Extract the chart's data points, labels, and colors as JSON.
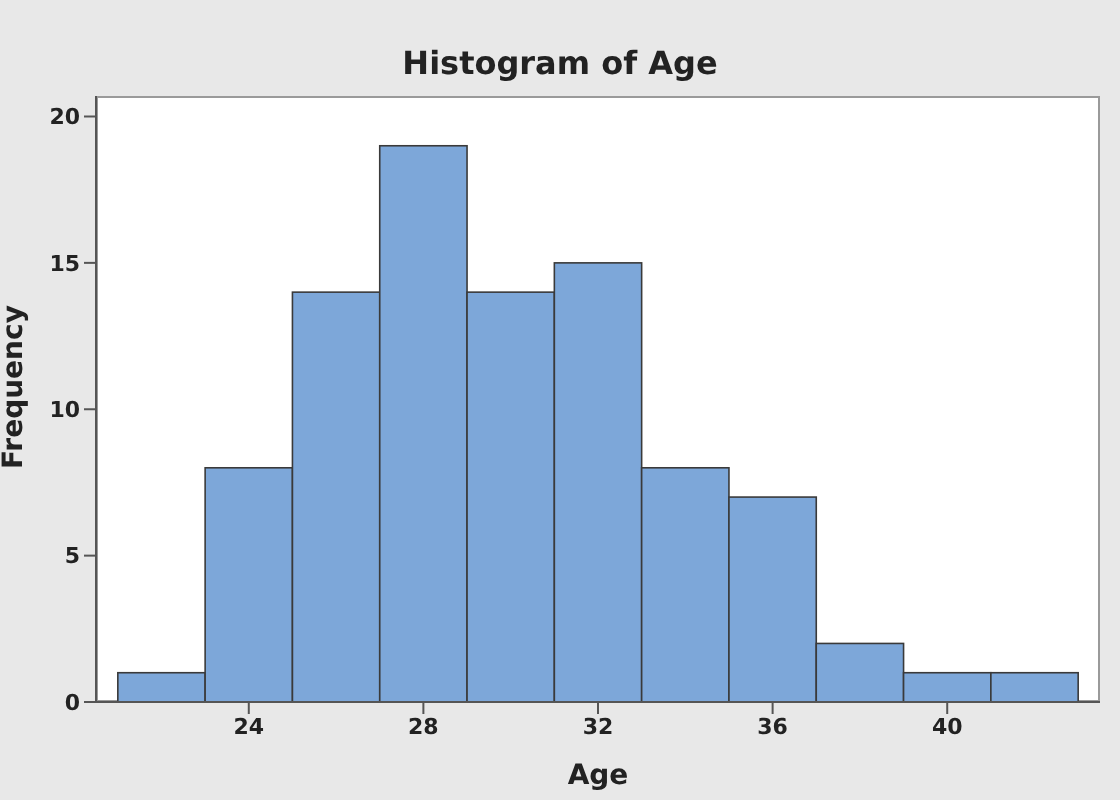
{
  "chart_data": {
    "type": "histogram",
    "title": "Histogram of Age",
    "xlabel": "Age",
    "ylabel": "Frequency",
    "bins": [
      21,
      23,
      25,
      27,
      29,
      31,
      33,
      35,
      37,
      39,
      41,
      43
    ],
    "values": [
      1,
      8,
      14,
      19,
      14,
      15,
      8,
      7,
      2,
      1,
      1
    ],
    "color": "#7da7d9",
    "xlim": [
      20.5,
      43.5
    ],
    "xticks": [
      24,
      28,
      32,
      36,
      40
    ],
    "ylim": [
      0,
      20.7
    ],
    "yticks": [
      0,
      5,
      10,
      15,
      20
    ],
    "grid": false,
    "legend": false
  }
}
